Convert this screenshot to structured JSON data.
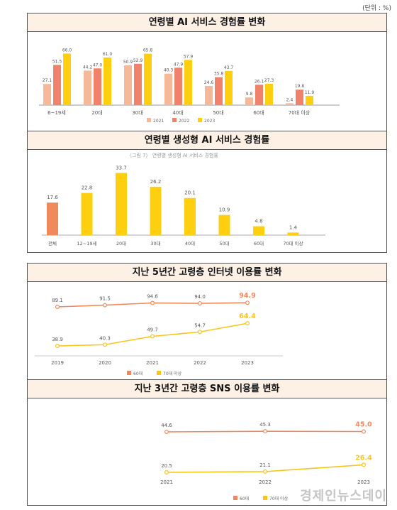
{
  "unit_label": "(단위 : %)",
  "watermark": "경제인뉴스데이",
  "colors": {
    "c2021": "#f5b999",
    "c2022": "#f0826b",
    "c2023": "#fdcf0f",
    "sixties": "#f08a5d",
    "seventies": "#f8c51b"
  },
  "chart_data": [
    {
      "type": "bar",
      "title": "연령별 AI 서비스 경험률 변화",
      "categories": [
        "6~19세",
        "20대",
        "30대",
        "40대",
        "50대",
        "60대",
        "70대 이상"
      ],
      "series": [
        {
          "name": "2021",
          "values": [
            27.1,
            44.2,
            50.9,
            40.3,
            24.6,
            9.8,
            2.4
          ]
        },
        {
          "name": "2022",
          "values": [
            51.5,
            47.0,
            52.9,
            47.9,
            35.8,
            26.1,
            19.8
          ]
        },
        {
          "name": "2023",
          "values": [
            66.0,
            61.0,
            65.8,
            57.9,
            43.7,
            27.3,
            11.9
          ]
        }
      ],
      "ylim": [
        0,
        70
      ],
      "legend": "bottom-center"
    },
    {
      "type": "bar",
      "title": "연령별 생성형 AI 서비스 경험률",
      "subtitle": "〈그림 7〉 연령별 생성형 AI 서비스 경험률",
      "categories": [
        "전체",
        "12~19세",
        "20대",
        "30대",
        "40대",
        "50대",
        "60대",
        "70대 이상"
      ],
      "values": [
        17.6,
        22.8,
        33.7,
        26.2,
        20.1,
        10.9,
        4.8,
        1.4
      ],
      "ylim": [
        0,
        35
      ]
    },
    {
      "type": "line",
      "title": "지난 5년간 고령층 인터넷 이용률 변화",
      "x": [
        "2019",
        "2020",
        "2021",
        "2022",
        "2023"
      ],
      "series": [
        {
          "name": "60대",
          "values": [
            89.1,
            91.5,
            94.6,
            94.0,
            94.9
          ]
        },
        {
          "name": "70대 이상",
          "values": [
            38.9,
            40.3,
            49.7,
            54.7,
            64.4
          ]
        }
      ],
      "legend": "bottom-center"
    },
    {
      "type": "line",
      "title": "지난 3년간 고령층 SNS 이용률 변화",
      "x": [
        "2021",
        "2022",
        "2023"
      ],
      "series": [
        {
          "name": "60대",
          "values": [
            44.6,
            45.3,
            45.0
          ]
        },
        {
          "name": "70대 이상",
          "values": [
            20.5,
            21.1,
            26.4
          ]
        }
      ],
      "legend": "bottom-center"
    }
  ]
}
